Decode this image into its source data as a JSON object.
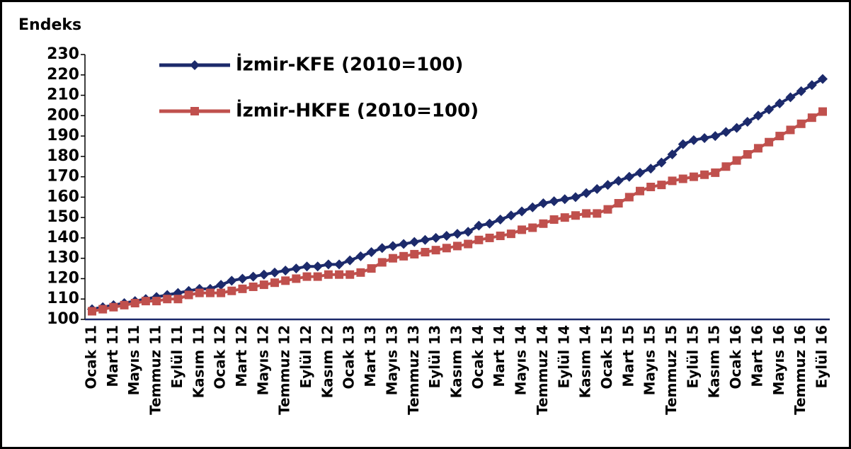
{
  "chart_data": {
    "type": "line",
    "y_label": "Endeks",
    "categories": [
      "Ocak 11",
      null,
      "Mart 11",
      null,
      "Mayıs 11",
      null,
      "Temmuz 11",
      null,
      "Eylül 11",
      null,
      "Kasım 11",
      null,
      "Ocak 12",
      null,
      "Mart 12",
      null,
      "Mayıs 12",
      null,
      "Temmuz 12",
      null,
      "Eylül 12",
      null,
      "Kasım 12",
      null,
      "Ocak 13",
      null,
      "Mart 13",
      null,
      "Mayıs 13",
      null,
      "Temmuz 13",
      null,
      "Eylül 13",
      null,
      "Kasım 13",
      null,
      "Ocak 14",
      null,
      "Mart 14",
      null,
      "Mayıs 14",
      null,
      "Temmuz 14",
      null,
      "Eylül 14",
      null,
      "Kasım 14",
      null,
      "Ocak 15",
      null,
      "Mart 15",
      null,
      "Mayıs 15",
      null,
      "Temmuz 15",
      null,
      "Eylül 15",
      null,
      "Kasım 15",
      null,
      "Ocak 16",
      null,
      "Mart 16",
      null,
      "Mayıs 16",
      null,
      "Temmuz 16",
      null,
      "Eylül 16"
    ],
    "series": [
      {
        "name": "İzmir-KFE (2010=100)",
        "color": "#1c2a6b",
        "marker": "diamond",
        "values": [
          105,
          106,
          107,
          108,
          109,
          110,
          111,
          112,
          113,
          114,
          115,
          115,
          117,
          119,
          120,
          121,
          122,
          123,
          124,
          125,
          126,
          126,
          127,
          127,
          129,
          131,
          133,
          135,
          136,
          137,
          138,
          139,
          140,
          141,
          142,
          143,
          146,
          147,
          149,
          151,
          153,
          155,
          157,
          158,
          159,
          160,
          162,
          164,
          166,
          168,
          170,
          172,
          174,
          177,
          181,
          186,
          188,
          189,
          190,
          192,
          194,
          197,
          200,
          203,
          206,
          209,
          212,
          215,
          218
        ]
      },
      {
        "name": "İzmir-HKFE (2010=100)",
        "color": "#c0504d",
        "marker": "square",
        "values": [
          104,
          105,
          106,
          107,
          108,
          109,
          109,
          110,
          110,
          112,
          113,
          113,
          113,
          114,
          115,
          116,
          117,
          118,
          119,
          120,
          121,
          121,
          122,
          122,
          122,
          123,
          125,
          128,
          130,
          131,
          132,
          133,
          134,
          135,
          136,
          137,
          139,
          140,
          141,
          142,
          144,
          145,
          147,
          149,
          150,
          151,
          152,
          152,
          154,
          157,
          160,
          163,
          165,
          166,
          168,
          169,
          170,
          171,
          172,
          175,
          178,
          181,
          184,
          187,
          190,
          193,
          196,
          199,
          202
        ]
      }
    ],
    "ylim": [
      100,
      230
    ],
    "yticks": [
      100,
      110,
      120,
      130,
      140,
      150,
      160,
      170,
      180,
      190,
      200,
      210,
      220,
      230
    ],
    "legend": "upper left"
  }
}
